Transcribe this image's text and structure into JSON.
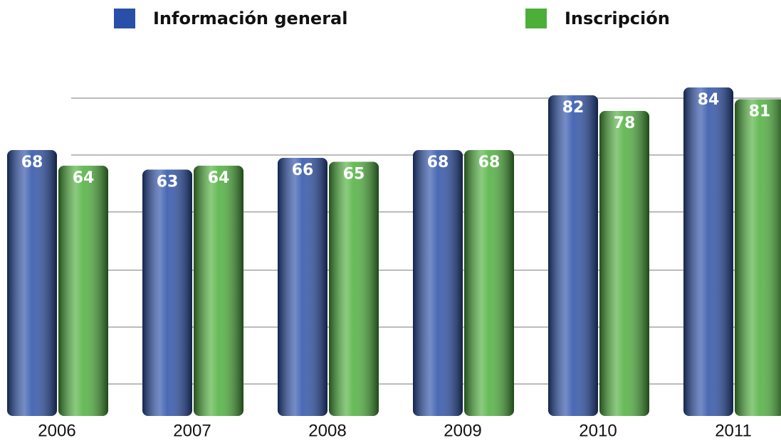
{
  "chart_data": {
    "type": "bar",
    "categories": [
      "2006",
      "2007",
      "2008",
      "2009",
      "2010",
      "2011"
    ],
    "series": [
      {
        "name": "Información general",
        "color": "#2a4fa8",
        "values": [
          68,
          63,
          66,
          68,
          82,
          84
        ]
      },
      {
        "name": "Inscripción",
        "color": "#4caf3a",
        "values": [
          64,
          64,
          65,
          68,
          78,
          81
        ]
      }
    ],
    "ylim": [
      0,
      100
    ]
  }
}
